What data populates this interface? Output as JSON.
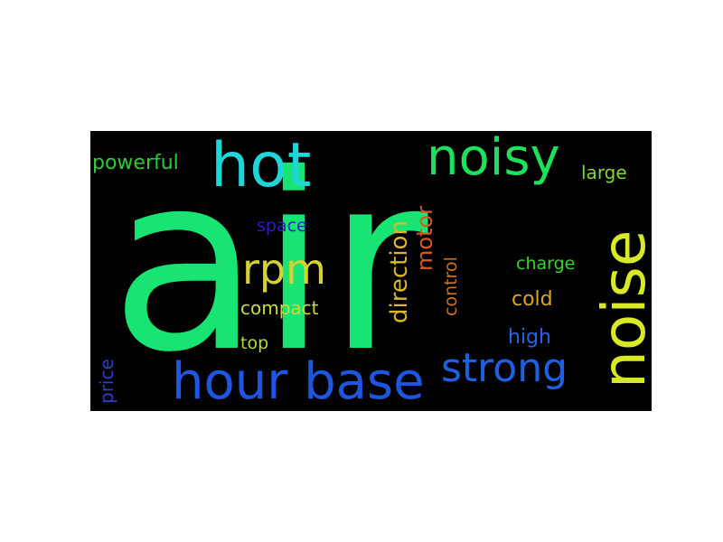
{
  "word_cloud": {
    "background": "#000000",
    "words": [
      {
        "key": "air",
        "text": "air",
        "color": "#17e472"
      },
      {
        "key": "hot",
        "text": "hot",
        "color": "#1ed5d8"
      },
      {
        "key": "noisy",
        "text": "noisy",
        "color": "#1be15b"
      },
      {
        "key": "noise",
        "text": "noise",
        "color": "#d6ea25"
      },
      {
        "key": "hour_base",
        "text": "hour base",
        "color": "#1f56e0"
      },
      {
        "key": "strong",
        "text": "strong",
        "color": "#1f5fe3"
      },
      {
        "key": "rpm",
        "text": "rpm",
        "color": "#d2d233"
      },
      {
        "key": "powerful",
        "text": "powerful",
        "color": "#2bcd3b"
      },
      {
        "key": "direction",
        "text": "direction",
        "color": "#d9b82c"
      },
      {
        "key": "motor",
        "text": "motor",
        "color": "#d65a21"
      },
      {
        "key": "large",
        "text": "large",
        "color": "#7ed836"
      },
      {
        "key": "space",
        "text": "space",
        "color": "#2a1dc8"
      },
      {
        "key": "charge",
        "text": "charge",
        "color": "#3ad12c"
      },
      {
        "key": "control",
        "text": "control",
        "color": "#c9721c"
      },
      {
        "key": "cold",
        "text": "cold",
        "color": "#d8a825"
      },
      {
        "key": "compact",
        "text": "compact",
        "color": "#cdd83a"
      },
      {
        "key": "high",
        "text": "high",
        "color": "#2364e2"
      },
      {
        "key": "top",
        "text": "top",
        "color": "#aedc35"
      },
      {
        "key": "price",
        "text": "price",
        "color": "#2b3fcc"
      }
    ]
  }
}
